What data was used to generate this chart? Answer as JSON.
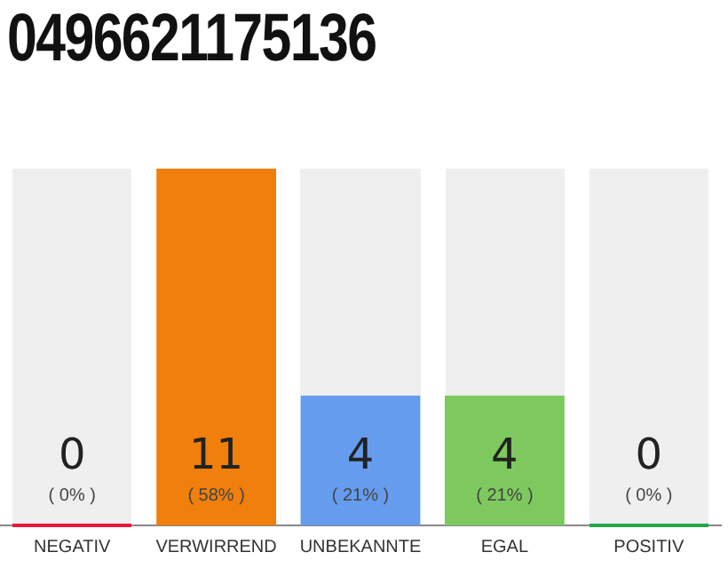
{
  "chart_data": {
    "type": "bar",
    "title": "0496621175136",
    "categories": [
      "NEGATIV",
      "VERWIRREND",
      "UNBEKANNTE",
      "EGAL",
      "POSITIV"
    ],
    "values": [
      0,
      11,
      4,
      4,
      0
    ],
    "colors": [
      "#e8193c",
      "#f07f0b",
      "#659ced",
      "#7dc95e",
      "#22a84a"
    ],
    "value_labels": [
      "0\n( 0% )",
      "11\n( 58% )",
      "4\n( 21% )",
      "4\n( 21% )",
      "0\n( 0% )"
    ],
    "grid": false,
    "legend": false,
    "tick_labels": "x"
  }
}
